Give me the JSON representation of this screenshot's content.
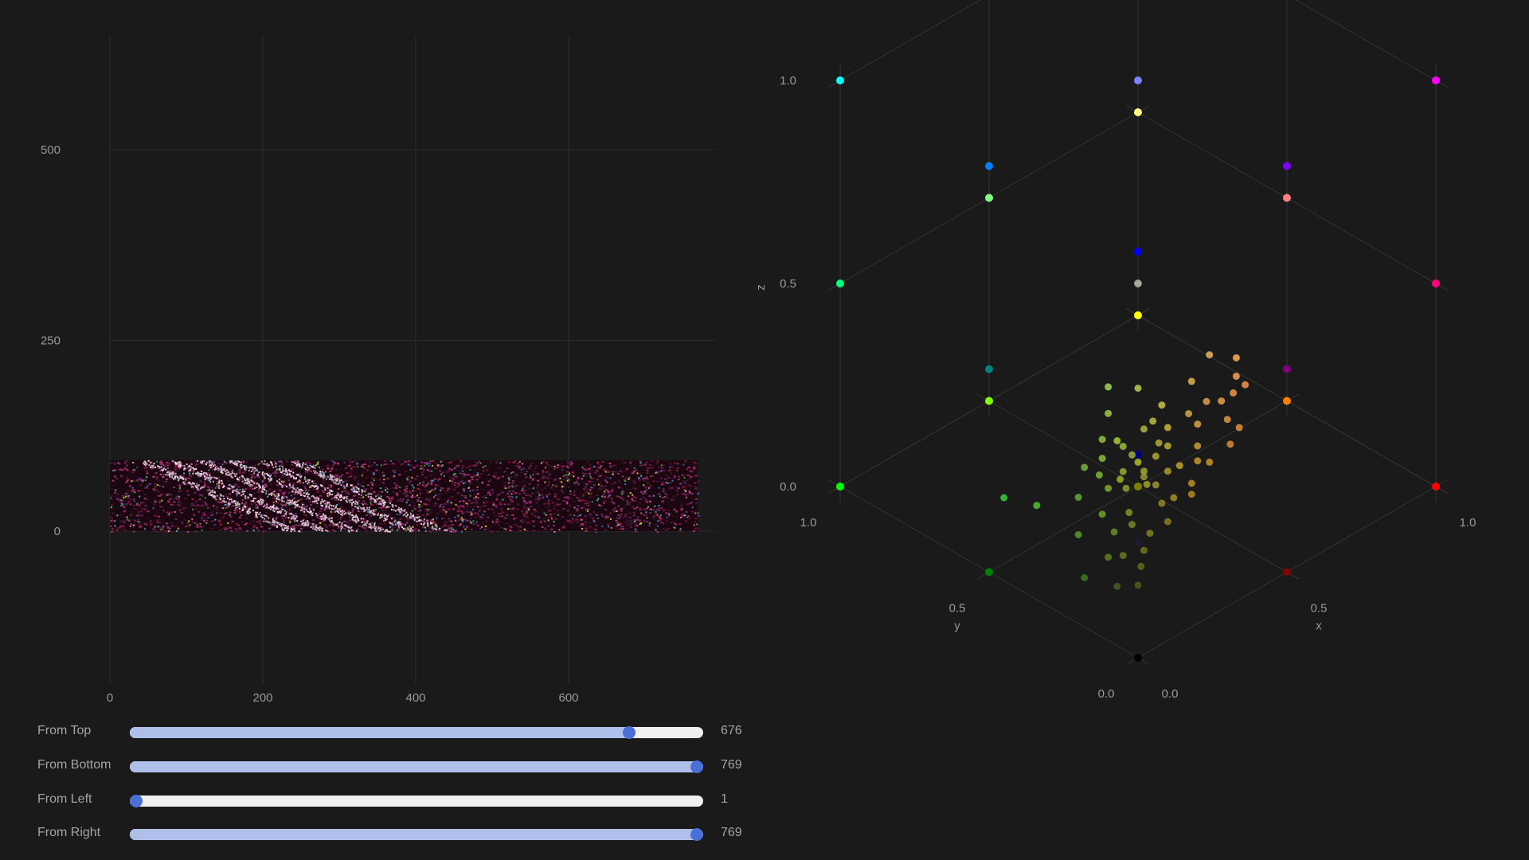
{
  "chart_data": [
    {
      "type": "image",
      "xlim": [
        0,
        800
      ],
      "ylim": [
        -220,
        650
      ],
      "xticks": [
        0,
        200,
        400,
        600
      ],
      "yticks": [
        0,
        250,
        500
      ],
      "image_extent": {
        "x": [
          0,
          769
        ],
        "y": [
          0,
          93
        ]
      },
      "grid": true
    },
    {
      "type": "scatter3d",
      "x_label": "x",
      "y_label": "y",
      "z_label": "z",
      "xticks": [
        "0.0",
        "0.5",
        "1.0"
      ],
      "yticks": [
        "0.0",
        "0.5",
        "1.0"
      ],
      "zticks": [
        "0.0",
        "0.5",
        "1.0"
      ],
      "range": [
        0,
        1
      ],
      "grid": true,
      "reference_points": [
        {
          "r": 0,
          "g": 0,
          "b": 0,
          "color": "#000000"
        },
        {
          "r": 1,
          "g": 0,
          "b": 0,
          "color": "#ff0000"
        },
        {
          "r": 0,
          "g": 1,
          "b": 0,
          "color": "#00ff00"
        },
        {
          "r": 0,
          "g": 0,
          "b": 1,
          "color": "#0000ff"
        },
        {
          "r": 1,
          "g": 1,
          "b": 0,
          "color": "#ffff00"
        },
        {
          "r": 1,
          "g": 0,
          "b": 1,
          "color": "#ff00ff"
        },
        {
          "r": 0,
          "g": 1,
          "b": 1,
          "color": "#00ffff"
        },
        {
          "r": 1,
          "g": 1,
          "b": 1,
          "color": "#ffffff"
        },
        {
          "r": 0.5,
          "g": 0,
          "b": 0,
          "color": "#800000"
        },
        {
          "r": 0,
          "g": 0.5,
          "b": 0,
          "color": "#008000"
        },
        {
          "r": 0,
          "g": 0,
          "b": 0.5,
          "color": "#000080"
        },
        {
          "r": 0.5,
          "g": 0.5,
          "b": 0,
          "color": "#808000"
        },
        {
          "r": 0.5,
          "g": 0,
          "b": 0.5,
          "color": "#800080"
        },
        {
          "r": 0,
          "g": 0.5,
          "b": 0.5,
          "color": "#008080"
        },
        {
          "r": 0.5,
          "g": 0.5,
          "b": 0.5,
          "color": "#808080"
        },
        {
          "r": 1,
          "g": 0.5,
          "b": 0,
          "color": "#ff8000"
        },
        {
          "r": 1,
          "g": 0,
          "b": 0.5,
          "color": "#ff0080"
        },
        {
          "r": 0.5,
          "g": 1,
          "b": 0,
          "color": "#80ff00"
        },
        {
          "r": 0,
          "g": 1,
          "b": 0.5,
          "color": "#00ff80"
        },
        {
          "r": 0.5,
          "g": 0,
          "b": 1,
          "color": "#8000ff"
        },
        {
          "r": 0,
          "g": 0.5,
          "b": 1,
          "color": "#0080ff"
        },
        {
          "r": 1,
          "g": 0.5,
          "b": 0.5,
          "color": "#ff8080"
        },
        {
          "r": 0.5,
          "g": 1,
          "b": 0.5,
          "color": "#80ff80"
        },
        {
          "r": 0.5,
          "g": 0.5,
          "b": 1,
          "color": "#8080ff"
        },
        {
          "r": 1,
          "g": 1,
          "b": 0.5,
          "color": "#ffff80"
        },
        {
          "r": 1,
          "g": 0.5,
          "b": 1,
          "color": "#ff80ff"
        },
        {
          "r": 0.5,
          "g": 1,
          "b": 1,
          "color": "#80ffff"
        },
        {
          "r": 0.1,
          "g": 0.1,
          "b": 0.2,
          "color": "#1a1a33"
        }
      ],
      "sample_points": [
        {
          "r": 0.4,
          "g": 0.45,
          "b": 0.1
        },
        {
          "r": 0.45,
          "g": 0.5,
          "b": 0.12
        },
        {
          "r": 0.5,
          "g": 0.48,
          "b": 0.15
        },
        {
          "r": 0.35,
          "g": 0.45,
          "b": 0.08
        },
        {
          "r": 0.42,
          "g": 0.4,
          "b": 0.1
        },
        {
          "r": 0.55,
          "g": 0.5,
          "b": 0.14
        },
        {
          "r": 0.48,
          "g": 0.55,
          "b": 0.1
        },
        {
          "r": 0.52,
          "g": 0.45,
          "b": 0.12
        },
        {
          "r": 0.38,
          "g": 0.5,
          "b": 0.12
        },
        {
          "r": 0.45,
          "g": 0.42,
          "b": 0.06
        },
        {
          "r": 0.3,
          "g": 0.42,
          "b": 0.05
        },
        {
          "r": 0.6,
          "g": 0.52,
          "b": 0.15
        },
        {
          "r": 0.4,
          "g": 0.52,
          "b": 0.15
        },
        {
          "r": 0.5,
          "g": 0.4,
          "b": 0.08
        },
        {
          "r": 0.55,
          "g": 0.45,
          "b": 0.1
        },
        {
          "r": 0.35,
          "g": 0.38,
          "b": 0.05
        },
        {
          "r": 0.45,
          "g": 0.55,
          "b": 0.18
        },
        {
          "r": 0.5,
          "g": 0.5,
          "b": 0.06
        },
        {
          "r": 0.42,
          "g": 0.48,
          "b": 0.06
        },
        {
          "r": 0.58,
          "g": 0.48,
          "b": 0.12
        },
        {
          "r": 0.62,
          "g": 0.45,
          "b": 0.15
        },
        {
          "r": 0.65,
          "g": 0.42,
          "b": 0.18
        },
        {
          "r": 0.7,
          "g": 0.42,
          "b": 0.16
        },
        {
          "r": 0.72,
          "g": 0.4,
          "b": 0.18
        },
        {
          "r": 0.68,
          "g": 0.38,
          "b": 0.14
        },
        {
          "r": 0.75,
          "g": 0.42,
          "b": 0.2
        },
        {
          "r": 0.66,
          "g": 0.35,
          "b": 0.1
        },
        {
          "r": 0.78,
          "g": 0.45,
          "b": 0.22
        },
        {
          "r": 0.7,
          "g": 0.36,
          "b": 0.12
        },
        {
          "r": 0.74,
          "g": 0.38,
          "b": 0.2
        },
        {
          "r": 0.6,
          "g": 0.4,
          "b": 0.1
        },
        {
          "r": 0.64,
          "g": 0.44,
          "b": 0.12
        },
        {
          "r": 0.56,
          "g": 0.42,
          "b": 0.06
        },
        {
          "r": 0.58,
          "g": 0.38,
          "b": 0.08
        },
        {
          "r": 0.54,
          "g": 0.36,
          "b": 0.05
        },
        {
          "r": 0.62,
          "g": 0.38,
          "b": 0.06
        },
        {
          "r": 0.52,
          "g": 0.34,
          "b": 0.04
        },
        {
          "r": 0.48,
          "g": 0.36,
          "b": 0.04
        },
        {
          "r": 0.4,
          "g": 0.3,
          "b": 0.04
        },
        {
          "r": 0.36,
          "g": 0.32,
          "b": 0.02
        },
        {
          "r": 0.3,
          "g": 0.28,
          "b": 0.02
        },
        {
          "r": 0.25,
          "g": 0.3,
          "b": 0.02
        },
        {
          "r": 0.28,
          "g": 0.36,
          "b": 0.04
        },
        {
          "r": 0.32,
          "g": 0.34,
          "b": 0.05
        },
        {
          "r": 0.44,
          "g": 0.38,
          "b": 0.08
        },
        {
          "r": 0.46,
          "g": 0.44,
          "b": 0.08
        },
        {
          "r": 0.5,
          "g": 0.44,
          "b": 0.1
        },
        {
          "r": 0.35,
          "g": 0.48,
          "b": 0.1
        },
        {
          "r": 0.3,
          "g": 0.48,
          "b": 0.14
        },
        {
          "r": 0.25,
          "g": 0.45,
          "b": 0.1
        },
        {
          "r": 0.2,
          "g": 0.4,
          "b": 0.05
        },
        {
          "r": 0.22,
          "g": 0.32,
          "b": 0.02
        },
        {
          "r": 0.26,
          "g": 0.25,
          "b": 0.01
        },
        {
          "r": 0.2,
          "g": 0.2,
          "b": 0.01
        },
        {
          "r": 0.15,
          "g": 0.22,
          "b": 0.02
        },
        {
          "r": 0.12,
          "g": 0.3,
          "b": 0.02
        },
        {
          "r": 0.18,
          "g": 0.52,
          "b": 0.08
        },
        {
          "r": 0.1,
          "g": 0.55,
          "b": 0.12
        },
        {
          "r": 0.48,
          "g": 0.58,
          "b": 0.22
        },
        {
          "r": 0.55,
          "g": 0.55,
          "b": 0.2
        },
        {
          "r": 0.5,
          "g": 0.5,
          "b": 0.5
        },
        {
          "r": 0.66,
          "g": 0.48,
          "b": 0.2
        },
        {
          "r": 0.72,
          "g": 0.48,
          "b": 0.24
        },
        {
          "r": 0.42,
          "g": 0.34,
          "b": 0.06
        },
        {
          "r": 0.38,
          "g": 0.42,
          "b": 0.08
        },
        {
          "r": 0.44,
          "g": 0.46,
          "b": 0.12
        }
      ]
    }
  ],
  "sliders": [
    {
      "label": "From Top",
      "value": 676,
      "display": "676",
      "min": 1,
      "max": 769
    },
    {
      "label": "From Bottom",
      "value": 769,
      "display": "769",
      "min": 1,
      "max": 769
    },
    {
      "label": "From Left",
      "value": 1,
      "display": "1",
      "min": 1,
      "max": 769
    },
    {
      "label": "From Right",
      "value": 769,
      "display": "769",
      "min": 1,
      "max": 769
    }
  ]
}
